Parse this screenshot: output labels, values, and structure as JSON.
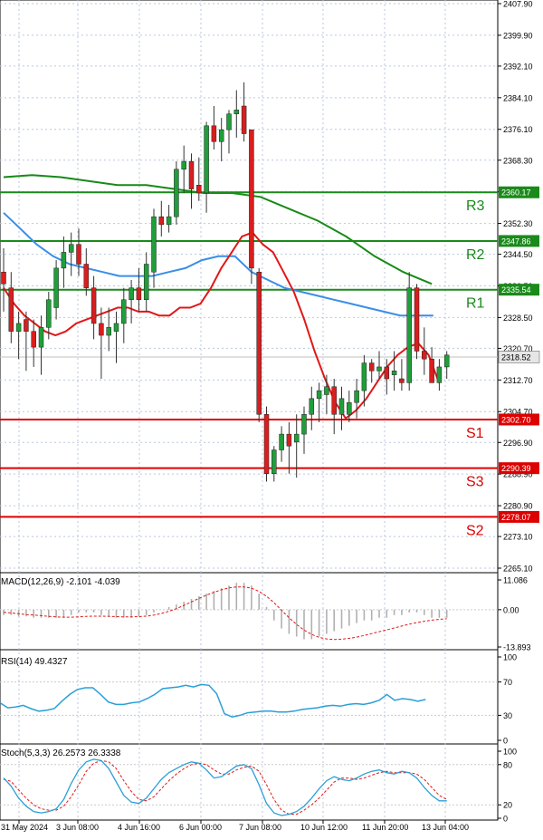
{
  "chart_data": [
    {
      "type": "candlestick",
      "panel": "price",
      "y_ticks": [
        "2407.90",
        "2399.90",
        "2392.10",
        "2384.10",
        "2376.10",
        "2368.30",
        "2360.30",
        "2352.30",
        "2344.50",
        "2336.50",
        "2328.50",
        "2320.70",
        "2312.70",
        "2304.70",
        "2296.90",
        "2288.90",
        "2280.90",
        "2273.10",
        "2265.10"
      ],
      "ylim": [
        2265.1,
        2407.9
      ],
      "x_ticks": [
        "31 May 2024",
        "3 Jun 08:00",
        "4 Jun 16:00",
        "6 Jun 00:00",
        "7 Jun 08:00",
        "10 Jun 12:00",
        "11 Jun 20:00",
        "13 Jun 04:00"
      ],
      "current_price": {
        "label": "2318.52",
        "value": 2318.52
      },
      "levels": [
        {
          "name": "R3",
          "label": "2360.17",
          "value": 2360.17,
          "kind": "resistance"
        },
        {
          "name": "R2",
          "label": "2347.86",
          "value": 2347.86,
          "kind": "resistance"
        },
        {
          "name": "R1",
          "label": "2335.54",
          "value": 2335.54,
          "kind": "resistance"
        },
        {
          "name": "S1",
          "label": "2302.70",
          "value": 2302.7,
          "kind": "support"
        },
        {
          "name": "S3",
          "label": "2290.39",
          "value": 2290.39,
          "kind": "support"
        },
        {
          "name": "S2",
          "label": "2278.07",
          "value": 2278.07,
          "kind": "support"
        }
      ],
      "candles": [
        [
          2340,
          2346,
          2330,
          2337
        ],
        [
          2336,
          2340,
          2322,
          2325
        ],
        [
          2325,
          2330,
          2318,
          2327
        ],
        [
          2328,
          2330,
          2315,
          2325
        ],
        [
          2325,
          2328,
          2316,
          2321
        ],
        [
          2321,
          2329,
          2314,
          2326
        ],
        [
          2326,
          2335,
          2323,
          2333
        ],
        [
          2331,
          2343,
          2328,
          2341
        ],
        [
          2341,
          2349,
          2336,
          2345
        ],
        [
          2345,
          2350,
          2339,
          2347
        ],
        [
          2347,
          2351,
          2339,
          2342
        ],
        [
          2342,
          2346,
          2334,
          2336
        ],
        [
          2336,
          2339,
          2323,
          2327
        ],
        [
          2327,
          2331,
          2313,
          2324
        ],
        [
          2324,
          2331,
          2320,
          2326
        ],
        [
          2325,
          2330,
          2317,
          2327
        ],
        [
          2327,
          2336,
          2322,
          2333
        ],
        [
          2333,
          2338,
          2327,
          2336
        ],
        [
          2336,
          2341,
          2330,
          2333
        ],
        [
          2333,
          2345,
          2330,
          2342
        ],
        [
          2340,
          2356,
          2336,
          2354
        ],
        [
          2354,
          2358,
          2349,
          2352
        ],
        [
          2352,
          2357,
          2350,
          2354
        ],
        [
          2354,
          2368,
          2352,
          2366
        ],
        [
          2366,
          2372,
          2360,
          2368
        ],
        [
          2368,
          2370,
          2356,
          2361
        ],
        [
          2362,
          2369,
          2358,
          2360
        ],
        [
          2360,
          2378,
          2355,
          2377
        ],
        [
          2377,
          2382,
          2371,
          2373
        ],
        [
          2373,
          2379,
          2368,
          2376
        ],
        [
          2376,
          2381,
          2370,
          2380
        ],
        [
          2380,
          2386,
          2374,
          2381
        ],
        [
          2382,
          2388,
          2373,
          2375
        ],
        [
          2376,
          2376,
          2337,
          2341
        ],
        [
          2340,
          2341,
          2302,
          2304
        ],
        [
          2304,
          2306,
          2287,
          2289
        ],
        [
          2289,
          2296,
          2287,
          2295
        ],
        [
          2295,
          2301,
          2292,
          2299
        ],
        [
          2299,
          2302,
          2289,
          2296
        ],
        [
          2297,
          2304,
          2288,
          2299
        ],
        [
          2299,
          2306,
          2294,
          2304
        ],
        [
          2304,
          2311,
          2300,
          2308
        ],
        [
          2308,
          2312,
          2302,
          2310
        ],
        [
          2309,
          2314,
          2304,
          2311
        ],
        [
          2311,
          2313,
          2299,
          2304
        ],
        [
          2304,
          2311,
          2300,
          2308
        ],
        [
          2304,
          2310,
          2302,
          2307
        ],
        [
          2307,
          2313,
          2303,
          2310
        ],
        [
          2310,
          2319,
          2306,
          2317
        ],
        [
          2317,
          2318,
          2312,
          2315
        ],
        [
          2315,
          2320,
          2313,
          2316
        ],
        [
          2316,
          2318,
          2309,
          2313
        ],
        [
          2314,
          2320,
          2310,
          2315
        ],
        [
          2313,
          2318,
          2310,
          2312
        ],
        [
          2312,
          2340,
          2310,
          2336
        ],
        [
          2336,
          2337,
          2318,
          2320
        ],
        [
          2320,
          2326,
          2314,
          2318
        ],
        [
          2318,
          2321,
          2312,
          2312
        ],
        [
          2312,
          2318,
          2310,
          2316
        ],
        [
          2316,
          2320,
          2313,
          2319
        ]
      ],
      "ma_fast": [
        2336,
        2332,
        2329,
        2327,
        2325,
        2324,
        2325,
        2327,
        2328,
        2329,
        2330,
        2331,
        2331,
        2330,
        2330,
        2329,
        2329,
        2331,
        2331,
        2332,
        2336,
        2341,
        2345,
        2349,
        2350,
        2347,
        2345,
        2340,
        2335,
        2328,
        2320,
        2313,
        2307,
        2303,
        2305,
        2308,
        2312,
        2316,
        2319,
        2321,
        2322,
        2319,
        2312
      ],
      "ma_fast_x": [
        0,
        2,
        4,
        6,
        8,
        10,
        12,
        14,
        16,
        18,
        20,
        22,
        24,
        26,
        28,
        30,
        32,
        34,
        36,
        38,
        40,
        42,
        44,
        46,
        48,
        50,
        52,
        54,
        56,
        58,
        60,
        62,
        64,
        66,
        68,
        70,
        72,
        74,
        76,
        78,
        80,
        82,
        84
      ],
      "ma_mid": [
        2355,
        2351,
        2347,
        2344,
        2342,
        2341,
        2340,
        2339,
        2339,
        2339,
        2340,
        2341,
        2343,
        2344,
        2344,
        2340,
        2338,
        2336,
        2335,
        2334,
        2333,
        2332,
        2331,
        2330,
        2329,
        2329,
        2329
      ],
      "ma_long": [
        2364,
        2364.5,
        2364,
        2363,
        2362,
        2362,
        2361,
        2360,
        2360,
        2359,
        2356,
        2353,
        2349,
        2344,
        2340,
        2337
      ]
    },
    {
      "type": "bar",
      "panel": "macd",
      "title": "MACD(12,26,9) -2.101 -4.039",
      "y_ticks": [
        "11.086",
        "0.00",
        "-13.893"
      ],
      "ylim": [
        -13.893,
        11.086
      ]
    },
    {
      "type": "line",
      "panel": "rsi",
      "title": "RSI(14) 49.4327",
      "y_ticks": [
        "100",
        "70",
        "30",
        "0"
      ],
      "ylim": [
        0,
        100
      ],
      "values": [
        45,
        39,
        40,
        42,
        38,
        35,
        36,
        38,
        47,
        55,
        61,
        63,
        63,
        55,
        46,
        43,
        43,
        45,
        46,
        50,
        55,
        62,
        63,
        64,
        66,
        64,
        67,
        66,
        56,
        32,
        28,
        30,
        33,
        34,
        35,
        35,
        34,
        34,
        35,
        37,
        38,
        39,
        41,
        42,
        41,
        43,
        44,
        43,
        45,
        48,
        55,
        48,
        50,
        49,
        47,
        49
      ]
    },
    {
      "type": "line",
      "panel": "stoch",
      "title": "Stoch(5,3,3) 26.2573 26.3338",
      "y_ticks": [
        "100",
        "80",
        "20",
        "0"
      ],
      "ylim": [
        0,
        100
      ]
    }
  ]
}
